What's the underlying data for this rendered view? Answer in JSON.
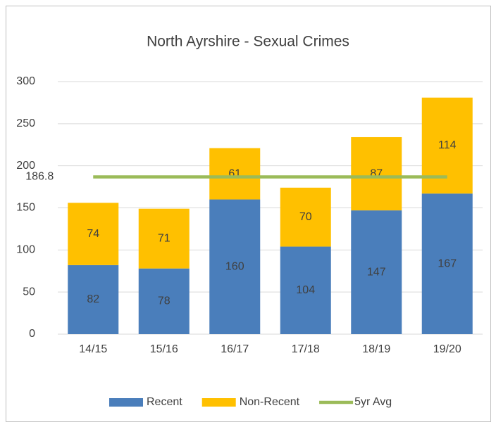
{
  "chart_data": {
    "type": "bar",
    "stacked": true,
    "title": "North  Ayrshire - Sexual Crimes",
    "categories": [
      "14/15",
      "15/16",
      "16/17",
      "17/18",
      "18/19",
      "19/20"
    ],
    "series": [
      {
        "name": "Recent",
        "color": "#4a7ebb",
        "values": [
          82,
          78,
          160,
          104,
          147,
          167
        ]
      },
      {
        "name": "Non-Recent",
        "color": "#ffc000",
        "values": [
          74,
          71,
          61,
          70,
          87,
          114
        ]
      },
      {
        "name": "5yr Avg",
        "type": "line",
        "color": "#9bbb59",
        "values": [
          186.8,
          186.8,
          186.8,
          186.8,
          186.8,
          186.8
        ]
      }
    ],
    "ylim": [
      0,
      300
    ],
    "yticks": [
      0,
      50,
      100,
      150,
      200,
      250,
      300
    ],
    "grid": true,
    "legend": "bottom"
  }
}
